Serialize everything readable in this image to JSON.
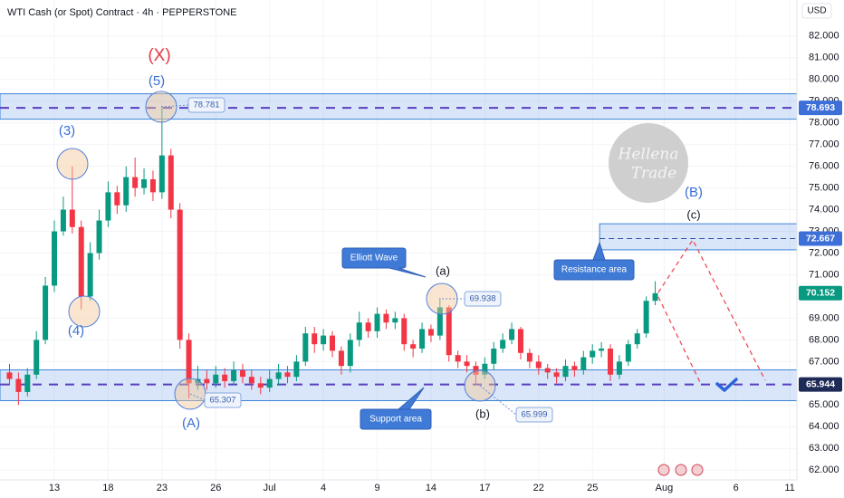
{
  "chart_data": {
    "type": "candlestick",
    "title": "WTI Cash (or Spot) Contract · 4h · PEPPERSTONE",
    "currency": "USD",
    "up_color": "#089981",
    "down_color": "#f23645",
    "grid": true,
    "xlim": [
      -3.03,
      41.4
    ],
    "ylim": [
      61.55,
      83.66
    ],
    "xticks": [
      {
        "value": 0,
        "label": "13"
      },
      {
        "value": 3,
        "label": "18"
      },
      {
        "value": 6,
        "label": "23"
      },
      {
        "value": 9,
        "label": "26"
      },
      {
        "value": 12,
        "label": "Jul"
      },
      {
        "value": 15,
        "label": "4"
      },
      {
        "value": 18,
        "label": "9"
      },
      {
        "value": 21,
        "label": "14"
      },
      {
        "value": 24,
        "label": "17"
      },
      {
        "value": 27,
        "label": "22"
      },
      {
        "value": 30,
        "label": "25"
      },
      {
        "value": 34,
        "label": "Aug"
      },
      {
        "value": 38,
        "label": "6"
      },
      {
        "value": 41,
        "label": "11"
      }
    ],
    "yticks": [
      {
        "value": 62,
        "label": "62.000"
      },
      {
        "value": 63,
        "label": "63.000"
      },
      {
        "value": 64,
        "label": "64.000"
      },
      {
        "value": 65,
        "label": "65.000"
      },
      {
        "value": 67,
        "label": "67.000"
      },
      {
        "value": 68,
        "label": "68.000"
      },
      {
        "value": 69,
        "label": "69.000"
      },
      {
        "value": 71,
        "label": "71.000"
      },
      {
        "value": 72,
        "label": "72.000"
      },
      {
        "value": 73,
        "label": "73.000"
      },
      {
        "value": 74,
        "label": "74.000"
      },
      {
        "value": 75,
        "label": "75.000"
      },
      {
        "value": 76,
        "label": "76.000"
      },
      {
        "value": 77,
        "label": "77.000"
      },
      {
        "value": 78,
        "label": "78.000"
      },
      {
        "value": 79,
        "label": "79.000"
      },
      {
        "value": 80,
        "label": "80.000"
      },
      {
        "value": 81,
        "label": "81.000"
      },
      {
        "value": 82,
        "label": "82.000"
      }
    ],
    "x": [
      -2.5,
      -2,
      -1.5,
      -1,
      -0.5,
      0,
      0.5,
      1,
      1.5,
      2,
      2.5,
      3,
      3.5,
      4,
      4.5,
      5,
      5.5,
      6,
      6.5,
      7,
      7.5,
      8,
      8.5,
      9,
      9.5,
      10,
      10.5,
      11,
      11.5,
      12,
      12.5,
      13,
      13.5,
      14,
      14.5,
      15,
      15.5,
      16,
      16.5,
      17,
      17.5,
      18,
      18.5,
      19,
      19.5,
      20,
      20.5,
      21,
      21.5,
      22,
      22.5,
      23,
      23.5,
      24,
      24.5,
      25,
      25.5,
      26,
      26.5,
      27,
      27.5,
      28,
      28.5,
      29,
      29.5,
      30,
      30.5,
      31,
      31.5,
      32,
      32.5,
      33,
      33.5
    ],
    "open": [
      66.5,
      66.2,
      65.6,
      66.4,
      68.0,
      70.5,
      73.0,
      74.0,
      73.2,
      70.0,
      72.0,
      73.5,
      74.8,
      74.2,
      75.5,
      75.0,
      75.4,
      74.8,
      76.5,
      74.0,
      68.0,
      66.0,
      66.2,
      66.0,
      66.4,
      66.1,
      66.6,
      66.3,
      66.0,
      65.8,
      66.2,
      66.5,
      66.3,
      67.0,
      68.3,
      67.8,
      68.2,
      67.5,
      66.8,
      68.0,
      68.8,
      68.4,
      69.2,
      68.8,
      69.0,
      67.8,
      67.6,
      68.5,
      68.2,
      69.5,
      67.3,
      67.0,
      66.8,
      66.4,
      66.9,
      67.6,
      68.0,
      68.5,
      67.4,
      67.0,
      66.7,
      66.5,
      66.3,
      66.8,
      66.6,
      67.2,
      67.5,
      67.6,
      66.4,
      67.0,
      67.8,
      68.3,
      69.8
    ],
    "high": [
      66.9,
      66.5,
      66.7,
      68.4,
      70.9,
      73.5,
      74.6,
      76.0,
      73.5,
      72.5,
      74.0,
      75.3,
      75.1,
      76.0,
      76.4,
      75.9,
      75.8,
      78.781,
      76.8,
      74.3,
      68.3,
      66.8,
      66.6,
      66.8,
      66.7,
      67.0,
      66.9,
      66.6,
      66.3,
      66.6,
      66.9,
      66.8,
      67.3,
      68.6,
      68.6,
      68.5,
      68.4,
      67.7,
      68.3,
      69.3,
      69.0,
      69.5,
      69.4,
      69.3,
      69.2,
      68.0,
      68.8,
      68.7,
      69.938,
      69.6,
      67.5,
      67.3,
      67.0,
      67.2,
      67.9,
      68.3,
      68.8,
      68.6,
      67.6,
      67.3,
      66.9,
      66.7,
      67.1,
      67.0,
      67.5,
      67.8,
      67.9,
      67.8,
      67.3,
      68.0,
      68.5,
      70.0,
      70.7
    ],
    "low": [
      65.9,
      65.0,
      65.4,
      66.2,
      67.8,
      70.2,
      72.8,
      72.9,
      69.4,
      69.8,
      71.7,
      73.2,
      73.8,
      73.9,
      74.6,
      74.7,
      74.4,
      74.5,
      73.6,
      67.6,
      65.307,
      65.7,
      65.7,
      65.8,
      65.8,
      65.9,
      66.0,
      65.7,
      65.5,
      65.6,
      65.9,
      66.0,
      66.1,
      66.8,
      67.4,
      67.5,
      67.2,
      66.4,
      66.5,
      67.7,
      68.1,
      68.1,
      68.5,
      68.5,
      67.5,
      67.2,
      67.4,
      67.9,
      68.0,
      67.0,
      66.7,
      66.5,
      65.999,
      66.2,
      66.6,
      67.4,
      67.8,
      67.1,
      66.7,
      66.4,
      66.2,
      66.0,
      66.1,
      66.3,
      66.4,
      66.9,
      67.2,
      66.1,
      66.2,
      66.8,
      67.6,
      68.1,
      69.6
    ],
    "close": [
      66.2,
      65.6,
      66.4,
      68.0,
      70.5,
      73.0,
      74.0,
      73.2,
      70.0,
      72.0,
      73.5,
      74.8,
      74.2,
      75.5,
      75.0,
      75.4,
      74.8,
      76.5,
      74.0,
      68.0,
      66.0,
      66.2,
      66.0,
      66.4,
      66.1,
      66.6,
      66.3,
      66.0,
      65.8,
      66.2,
      66.5,
      66.3,
      67.0,
      68.3,
      67.8,
      68.2,
      67.5,
      66.8,
      68.0,
      68.8,
      68.4,
      69.2,
      68.8,
      69.0,
      67.8,
      67.6,
      68.5,
      68.2,
      69.5,
      67.3,
      67.0,
      66.8,
      66.4,
      66.9,
      67.6,
      68.0,
      68.5,
      67.4,
      67.0,
      66.7,
      66.5,
      66.3,
      66.8,
      66.6,
      67.2,
      67.5,
      67.6,
      66.4,
      67.0,
      67.8,
      68.3,
      69.8,
      70.152
    ],
    "zones": [
      {
        "low": 78.17,
        "high": 79.34
      },
      {
        "low": 65.2,
        "high": 66.62
      },
      {
        "low": 72.15,
        "high": 73.35,
        "from": 30.4
      }
    ],
    "levels": [
      {
        "value": 78.693,
        "color": "#3d6fd8",
        "line": "#5a3fc0"
      },
      {
        "value": 72.667,
        "color": "#3d6fd8",
        "line": "#2f4fa8",
        "from": 30.4
      },
      {
        "value": 70.152,
        "color": "#089981"
      },
      {
        "value": 65.944,
        "color": "#1f2b57",
        "line": "#5a3fc0"
      }
    ],
    "price_callouts": [
      78.781,
      65.307,
      69.938,
      65.999
    ],
    "wave_labels": [
      "(X)",
      "(5)",
      "(3)",
      "(4)",
      "(A)",
      "(a)",
      "(b)",
      "(c)",
      "(B)"
    ],
    "notes": [
      "Elliott Wave",
      "Resistance area",
      "Support area"
    ],
    "logo": [
      "Hellena",
      "Trade"
    ]
  }
}
